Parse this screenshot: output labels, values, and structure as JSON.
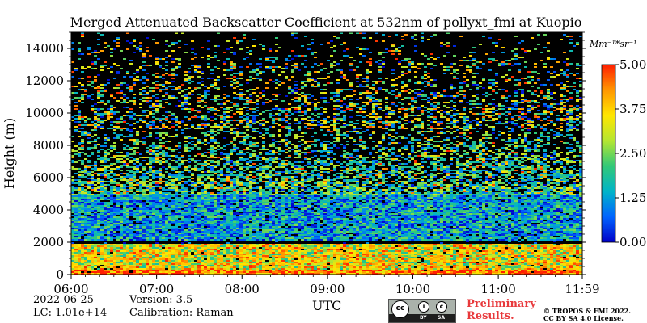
{
  "chart_data": {
    "type": "heatmap",
    "title": "Merged Attenuated Backscatter Coefficient at 532nm of pollyxt_fmi at Kuopio",
    "xlabel": "UTC",
    "ylabel": "Height (m)",
    "x_ticks": [
      "06:00",
      "07:00",
      "08:00",
      "09:00",
      "10:00",
      "11:00",
      "11:59"
    ],
    "y_ticks": [
      0,
      2000,
      4000,
      6000,
      8000,
      10000,
      12000,
      14000
    ],
    "ylim": [
      0,
      15000
    ],
    "colorbar": {
      "unit": "Mm⁻¹*sr⁻¹",
      "ticks": [
        "0.00",
        "1.25",
        "2.50",
        "3.75",
        "5.00"
      ],
      "range": [
        0,
        5
      ],
      "colors": [
        "#0000c8",
        "#0064ff",
        "#00b4c8",
        "#32c878",
        "#b4e632",
        "#ffe600",
        "#ff9600",
        "#ff1e00"
      ]
    },
    "layers": [
      {
        "from_m": 0,
        "to_m": 300,
        "dominant_value": 4.5
      },
      {
        "from_m": 300,
        "to_m": 1900,
        "dominant_value": 3.0
      },
      {
        "from_m": 1900,
        "to_m": 2100,
        "dominant_value": 0.0
      },
      {
        "from_m": 2100,
        "to_m": 5000,
        "dominant_value": 1.3
      },
      {
        "from_m": 5000,
        "to_m": 9000,
        "dominant_value": 2.0
      },
      {
        "from_m": 9000,
        "to_m": 15000,
        "dominant_value": 0.0
      }
    ]
  },
  "footer": {
    "date": "2022-06-25",
    "lc": "LC: 1.01e+14",
    "version": "Version: 3.5",
    "calibration": "Calibration: Raman",
    "preliminary_1": "Preliminary",
    "preliminary_2": "Results.",
    "copyright_1": "© TROPOS & FMI 2022.",
    "copyright_2": "CC BY SA 4.0 License."
  },
  "license_badge": {
    "cc": "cc",
    "by": "BY",
    "sa": "SA"
  }
}
